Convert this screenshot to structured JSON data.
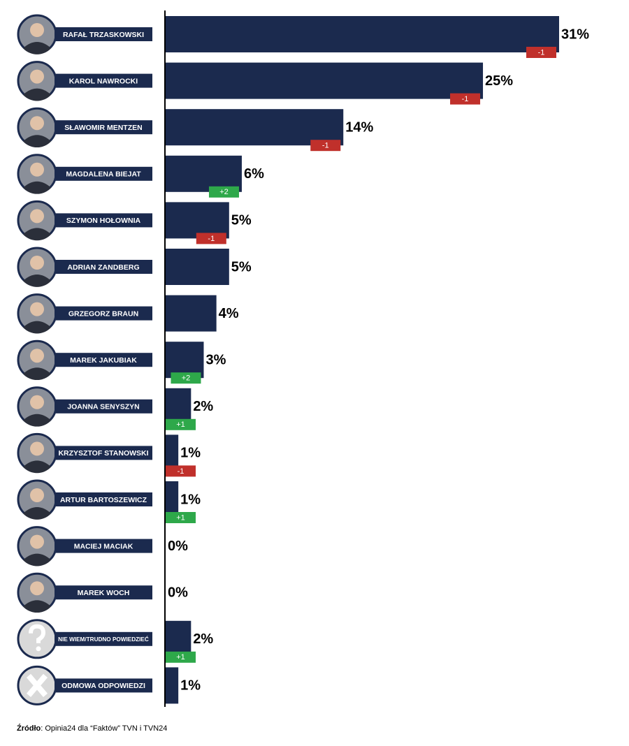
{
  "chart_data": {
    "type": "bar",
    "categories": [
      "RAFAŁ TRZASKOWSKI",
      "KAROL NAWROCKI",
      "SŁAWOMIR MENTZEN",
      "MAGDALENA BIEJAT",
      "SZYMON HOŁOWNIA",
      "ADRIAN ZANDBERG",
      "GRZEGORZ BRAUN",
      "MAREK JAKUBIAK",
      "JOANNA SENYSZYN",
      "KRZYSZTOF STANOWSKI",
      "ARTUR BARTOSZEWICZ",
      "MACIEJ MACIAK",
      "MAREK WOCH",
      "NIE WIEM/TRUDNO POWIEDZIEĆ",
      "ODMOWA ODPOWIEDZI"
    ],
    "values": [
      31,
      25,
      14,
      6,
      5,
      5,
      4,
      3,
      2,
      1,
      1,
      0,
      0,
      2,
      1
    ],
    "value_labels": [
      "31%",
      "25%",
      "14%",
      "6%",
      "5%",
      "5%",
      "4%",
      "3%",
      "2%",
      "1%",
      "1%",
      "0%",
      "0%",
      "2%",
      "1%"
    ],
    "color": "#1b2a4e",
    "changes": [
      -1,
      -1,
      -1,
      {
        "value": 2,
        "label": "+2"
      },
      -1,
      null,
      null,
      {
        "value": 2,
        "label": "+2"
      },
      {
        "value": 1,
        "label": "+1"
      },
      -1,
      {
        "value": 1,
        "label": "+1"
      },
      null,
      null,
      {
        "value": 1,
        "label": "+1"
      },
      null
    ],
    "change_colors": {
      "up": "#2ea84a",
      "down": "#c0302b"
    },
    "source_label": "Źródło",
    "source": ": Opinia24 dla “Faktów” TVN i TVN24"
  }
}
